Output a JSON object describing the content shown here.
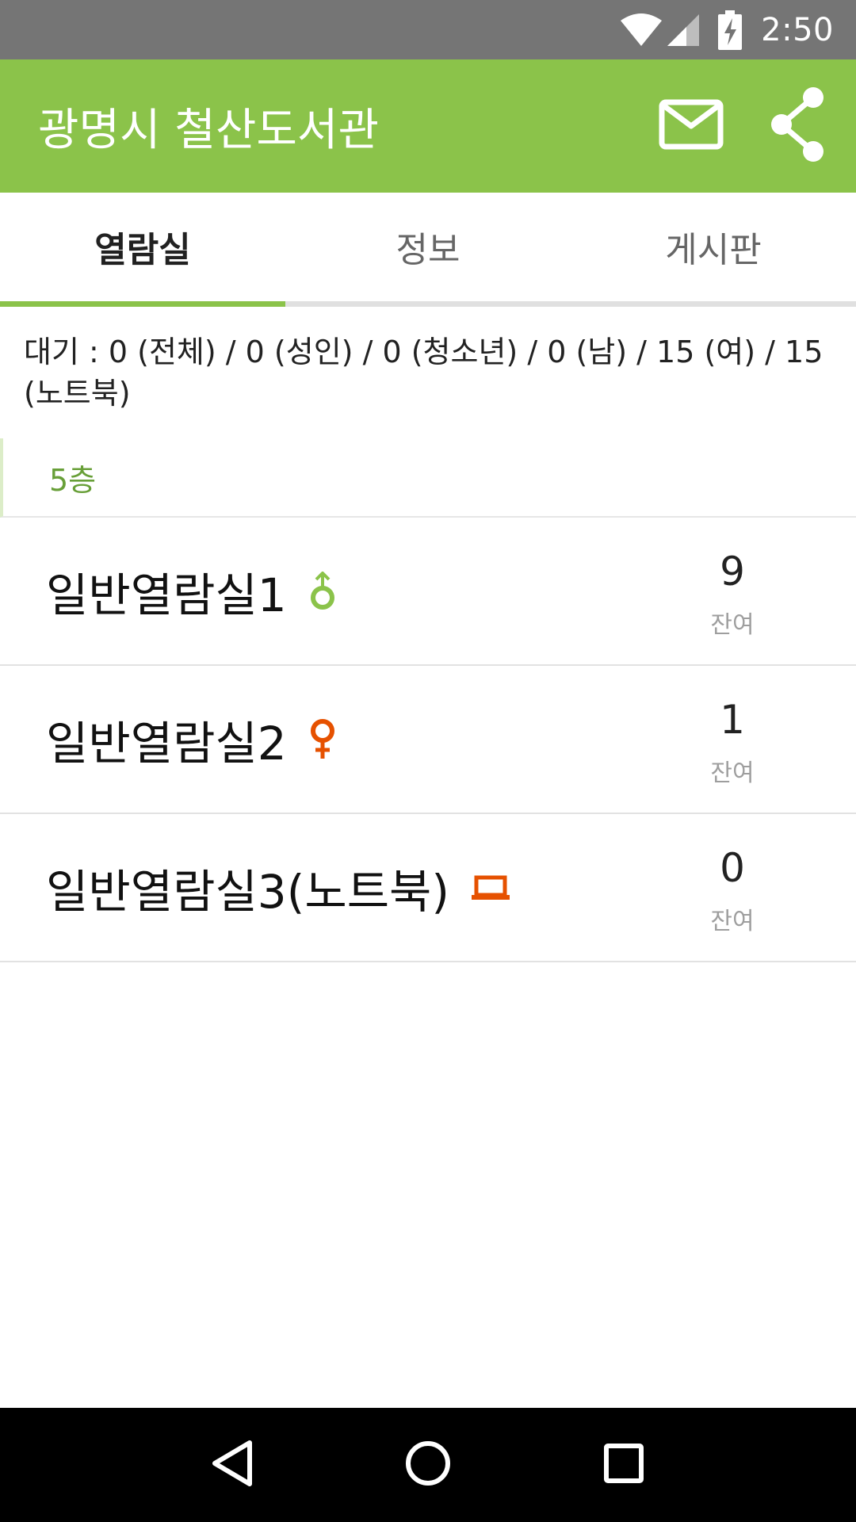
{
  "status_bar": {
    "time": "2:50",
    "icons": [
      "wifi-icon",
      "signal-icon",
      "battery-charging-icon"
    ]
  },
  "app_bar": {
    "title": "광명시 철산도서관",
    "actions": [
      "mail-icon",
      "share-icon"
    ],
    "color": "#8bc34a"
  },
  "tabs": [
    {
      "label": "열람실",
      "active": true
    },
    {
      "label": "정보",
      "active": false
    },
    {
      "label": "게시판",
      "active": false
    }
  ],
  "waiting": {
    "text": "대기 : 0 (전체) / 0 (성인) / 0 (청소년) / 0 (남) / 15 (여) / 15 (노트북)"
  },
  "floor": {
    "label": "5층"
  },
  "rooms": [
    {
      "name": "일반열람실1",
      "icon": "male-icon",
      "icon_color": "#8bc34a",
      "count": "9",
      "count_label": "잔여"
    },
    {
      "name": "일반열람실2",
      "icon": "female-icon",
      "icon_color": "#e65100",
      "count": "1",
      "count_label": "잔여"
    },
    {
      "name": "일반열람실3(노트북)",
      "icon": "laptop-icon",
      "icon_color": "#e65100",
      "count": "0",
      "count_label": "잔여"
    }
  ],
  "nav_bar": {
    "buttons": [
      "back-icon",
      "home-icon",
      "recents-icon"
    ]
  }
}
